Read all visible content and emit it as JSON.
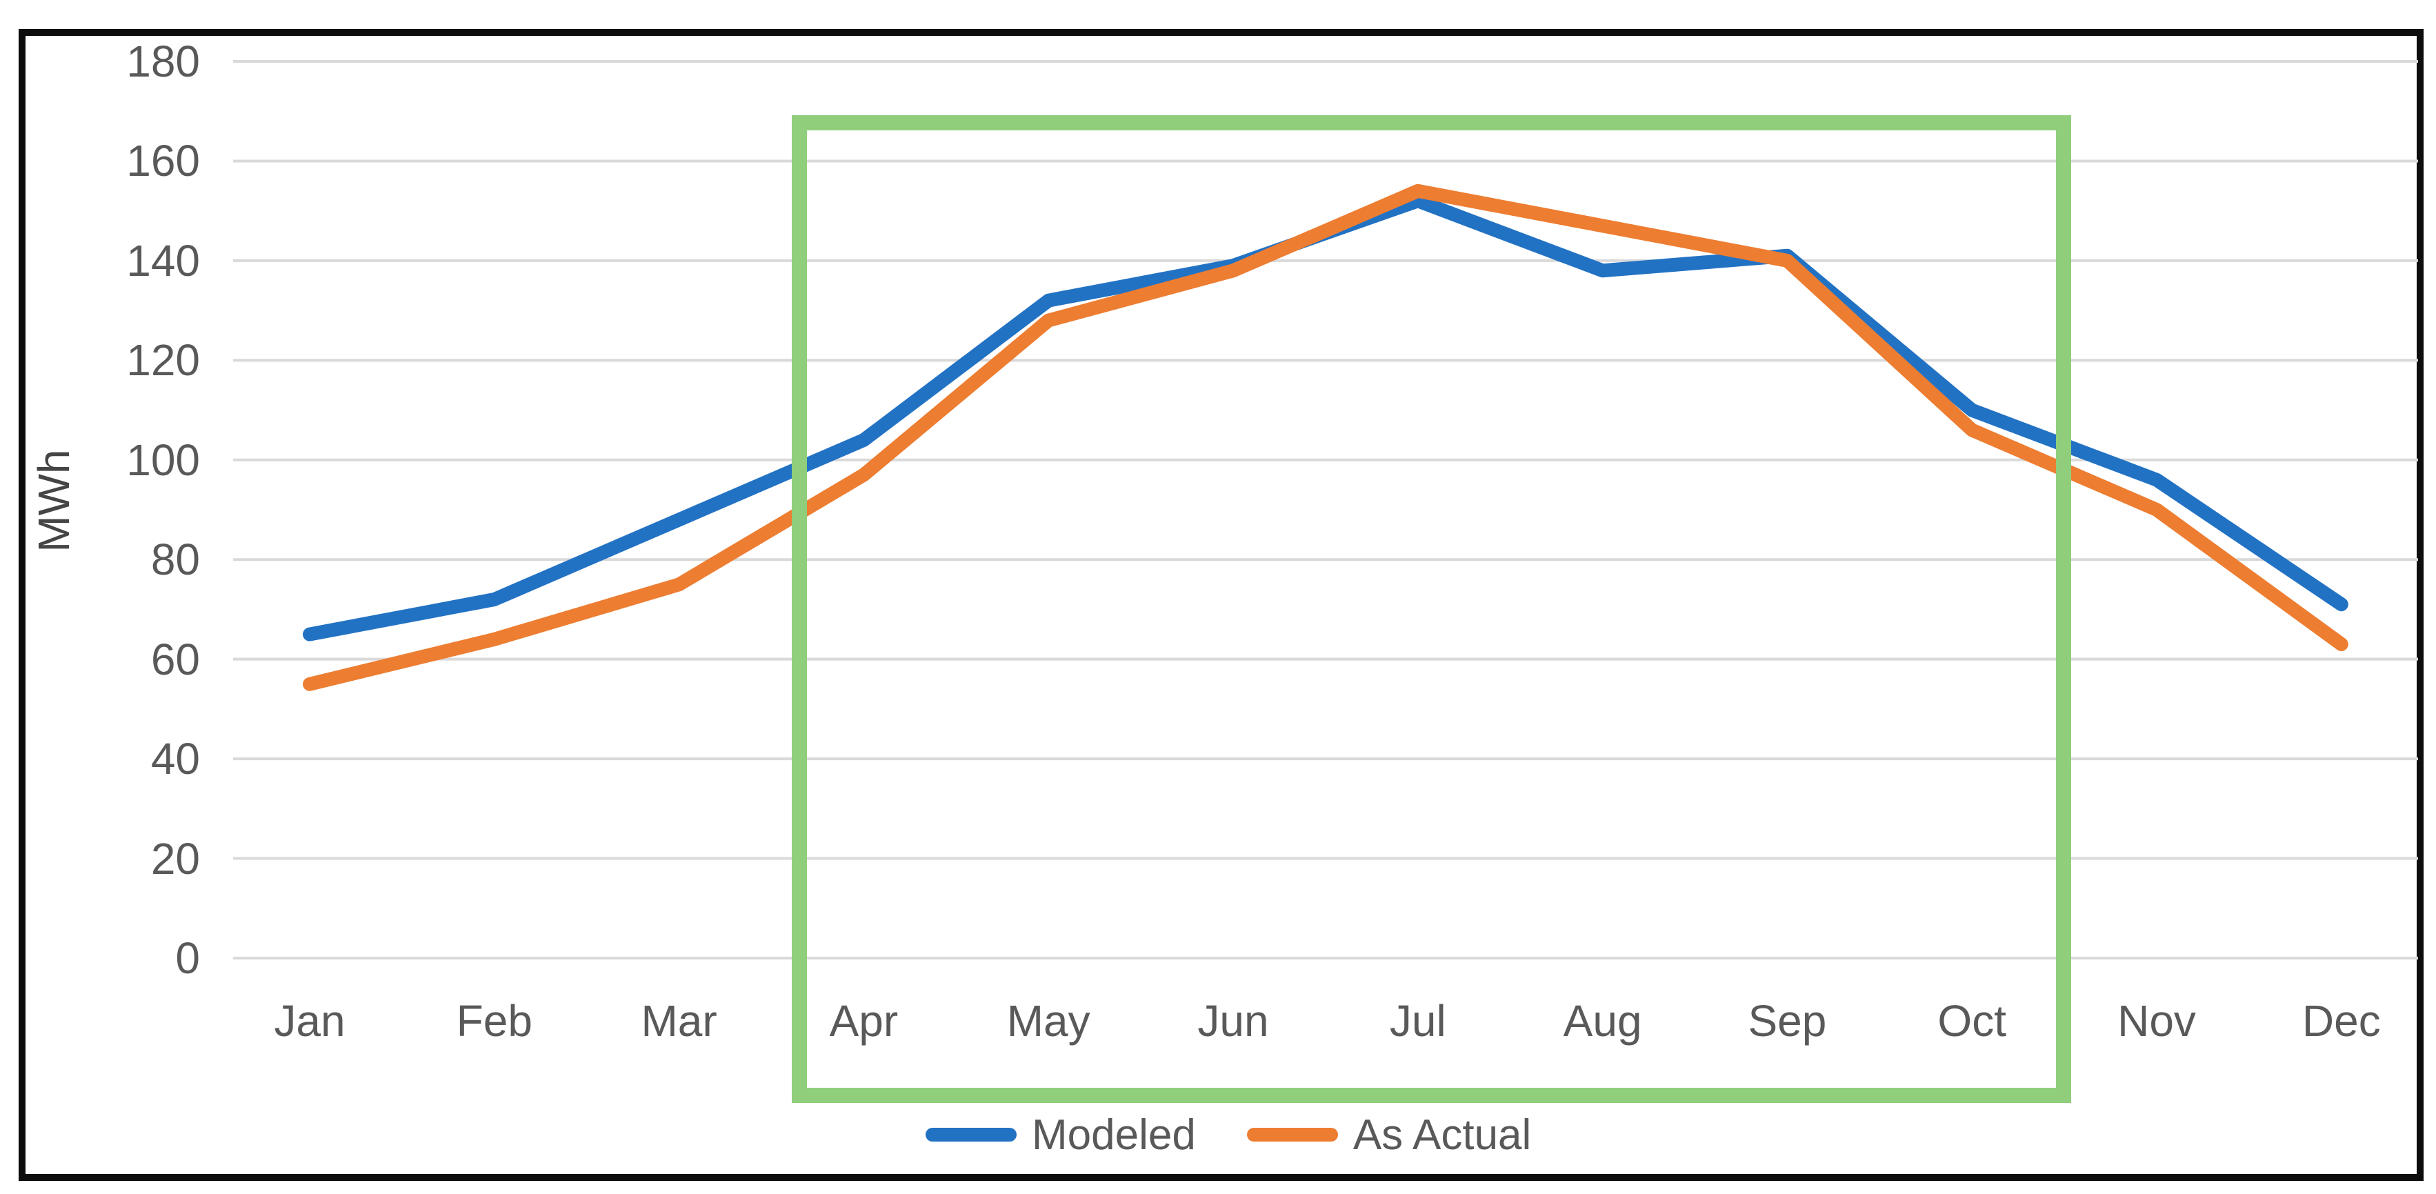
{
  "chart_data": {
    "type": "line",
    "title": "",
    "xlabel": "",
    "ylabel": "MWh",
    "categories": [
      "Jan",
      "Feb",
      "Mar",
      "Apr",
      "May",
      "Jun",
      "Jul",
      "Aug",
      "Sep",
      "Oct",
      "Nov",
      "Dec"
    ],
    "yticks": [
      0,
      20,
      40,
      60,
      80,
      100,
      120,
      140,
      160,
      180
    ],
    "ylim": [
      0,
      180
    ],
    "grid": "horizontal",
    "gridline_color": "#D9D9D9",
    "legend_position": "bottom-center",
    "series": [
      {
        "name": "Modeled",
        "color": "#2272C4",
        "values": [
          65,
          72,
          88,
          104,
          132,
          139,
          152,
          138,
          141,
          110,
          96,
          71
        ]
      },
      {
        "name": "As Actual",
        "color": "#ED7D31",
        "values": [
          55,
          64,
          75,
          97,
          128,
          138,
          154,
          147,
          140,
          106,
          90,
          63
        ]
      }
    ],
    "annotation_box": {
      "shape": "rectangle-outline",
      "from_category": "Apr",
      "to_category": "Oct",
      "color": "#90CE7C"
    }
  }
}
